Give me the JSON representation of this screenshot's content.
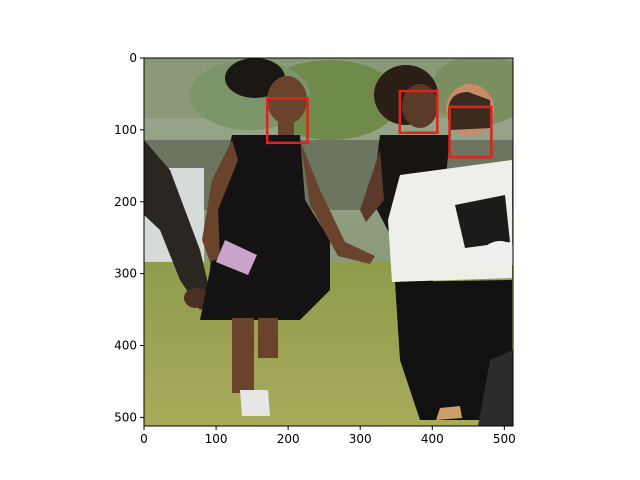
{
  "figure": {
    "image_extent": {
      "x": [
        0,
        512
      ],
      "y": [
        512,
        0
      ]
    },
    "x_ticks": [
      0,
      100,
      200,
      300,
      400,
      500
    ],
    "y_ticks": [
      0,
      100,
      200,
      300,
      400,
      500
    ],
    "x_tick_labels": [
      "0",
      "100",
      "200",
      "300",
      "400",
      "500"
    ],
    "y_tick_labels": [
      "0",
      "100",
      "200",
      "300",
      "400",
      "500"
    ],
    "box_color": "#e0241b",
    "detections": [
      {
        "label": "face",
        "x0": 171,
        "y0": 56,
        "x1": 227,
        "y1": 118
      },
      {
        "label": "face",
        "x0": 355,
        "y0": 46,
        "x1": 407,
        "y1": 104
      },
      {
        "label": "face",
        "x0": 424,
        "y0": 68,
        "x1": 482,
        "y1": 138
      }
    ]
  }
}
